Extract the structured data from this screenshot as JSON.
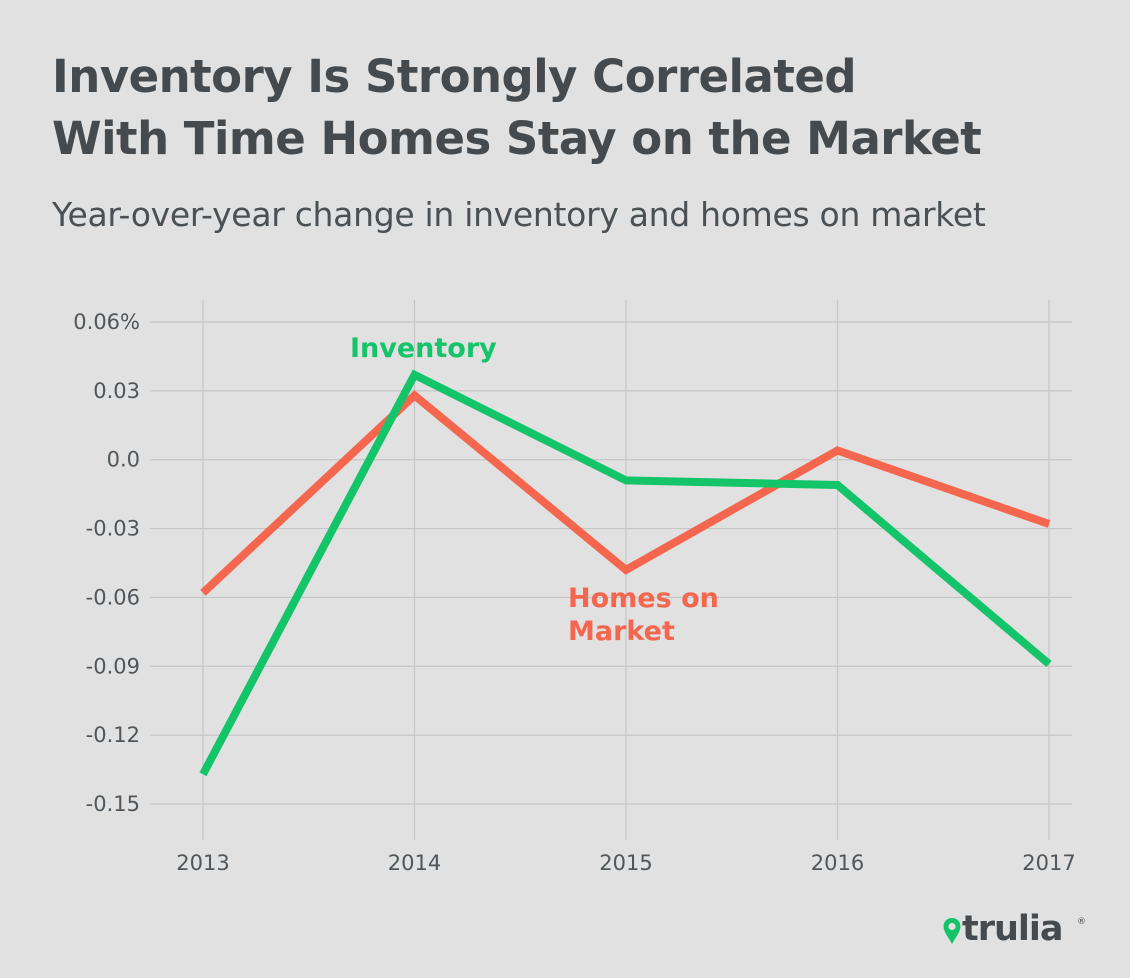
{
  "chart_data": {
    "type": "line",
    "title": "Inventory Is Strongly Correlated With Time Homes Stay on the Market",
    "title_lines": [
      "Inventory Is Strongly Correlated",
      "With Time Homes Stay on the Market"
    ],
    "subtitle": "Year-over-year change in inventory and homes on market",
    "x": [
      2013,
      2014,
      2015,
      2016,
      2017
    ],
    "x_tick_labels": [
      "2013",
      "2014",
      "2015",
      "2016",
      "2017"
    ],
    "y_ticks": [
      0.06,
      0.03,
      0.0,
      -0.03,
      -0.06,
      -0.09,
      -0.12,
      -0.15
    ],
    "y_tick_labels": [
      "0.06%",
      "0.03",
      "0.0",
      "-0.03",
      "-0.06",
      "-0.09",
      "-0.12",
      "-0.15"
    ],
    "ylim": [
      -0.15,
      0.06
    ],
    "grid": true,
    "legend": "inline labels",
    "series": [
      {
        "name": "Inventory",
        "color": "#14c468",
        "values": [
          -0.137,
          0.037,
          -0.009,
          -0.011,
          -0.089
        ],
        "label_lines": [
          "Inventory"
        ]
      },
      {
        "name": "Homes on Market",
        "color": "#f5664e",
        "values": [
          -0.058,
          0.028,
          -0.048,
          0.004,
          -0.028
        ],
        "label_lines": [
          "Homes on",
          "Market"
        ]
      }
    ]
  },
  "brand": {
    "logo_text": "trulia",
    "registered_mark": "®",
    "logo_icon": "map-pin-icon",
    "color": "#14c468"
  }
}
